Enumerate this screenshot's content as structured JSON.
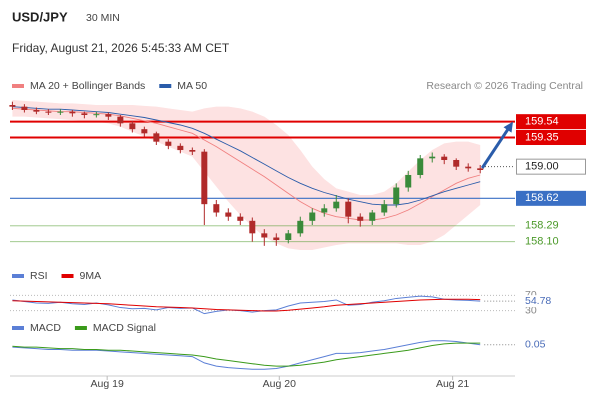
{
  "header": {
    "symbol": "USD/JPY",
    "timeframe": "30 MIN",
    "timestamp": "Friday, August 21, 2026 5:45:33 AM CET",
    "credit": "Research © 2026 Trading Central"
  },
  "chart_data": [
    {
      "type": "candlestick",
      "xlim": [
        -0.2,
        41.9
      ],
      "ylim": [
        158.0,
        159.8
      ],
      "up_color": "#3a8a3a",
      "down_color": "#b02a2a",
      "band_color": "#fde2e2",
      "open": [
        159.74,
        159.72,
        159.68,
        159.66,
        159.65,
        159.66,
        159.64,
        159.62,
        159.63,
        159.6,
        159.52,
        159.45,
        159.4,
        159.3,
        159.25,
        159.2,
        159.18,
        158.55,
        158.45,
        158.4,
        158.35,
        158.2,
        158.15,
        158.12,
        158.2,
        158.35,
        158.45,
        158.5,
        158.58,
        158.4,
        158.35,
        158.45,
        158.55,
        158.75,
        158.9,
        159.1,
        159.12,
        159.08,
        159.0,
        158.98
      ],
      "high": [
        159.78,
        159.75,
        159.71,
        159.69,
        159.69,
        159.68,
        159.66,
        159.66,
        159.65,
        159.62,
        159.55,
        159.48,
        159.42,
        159.33,
        159.28,
        159.23,
        159.21,
        158.6,
        158.5,
        158.44,
        158.39,
        158.25,
        158.2,
        158.24,
        158.4,
        158.5,
        158.55,
        158.66,
        158.62,
        158.44,
        158.48,
        158.6,
        158.8,
        158.95,
        159.14,
        159.17,
        159.15,
        159.1,
        159.04,
        159.02
      ],
      "low": [
        159.68,
        159.65,
        159.63,
        159.62,
        159.62,
        159.6,
        159.58,
        159.59,
        159.56,
        159.48,
        159.41,
        159.36,
        159.26,
        159.21,
        159.16,
        159.14,
        158.3,
        158.4,
        158.35,
        158.3,
        158.1,
        158.05,
        158.05,
        158.08,
        158.16,
        158.3,
        158.4,
        158.46,
        158.32,
        158.28,
        158.3,
        158.41,
        158.51,
        158.7,
        158.86,
        159.05,
        159.03,
        158.96,
        158.94,
        158.92
      ],
      "close": [
        159.72,
        159.68,
        159.66,
        159.65,
        159.66,
        159.64,
        159.62,
        159.63,
        159.6,
        159.52,
        159.45,
        159.4,
        159.3,
        159.25,
        159.2,
        159.18,
        158.55,
        158.45,
        158.4,
        158.35,
        158.2,
        158.15,
        158.12,
        158.2,
        158.35,
        158.45,
        158.5,
        158.58,
        158.4,
        158.35,
        158.45,
        158.55,
        158.75,
        158.9,
        159.1,
        159.12,
        159.08,
        159.0,
        158.98,
        158.96
      ],
      "series": [
        {
          "name": "MA 20 + Bollinger Bands",
          "color": "#f08080",
          "values": [
            159.7,
            159.69,
            159.68,
            159.67,
            159.66,
            159.66,
            159.65,
            159.64,
            159.63,
            159.61,
            159.58,
            159.55,
            159.52,
            159.48,
            159.44,
            159.4,
            159.32,
            159.24,
            159.15,
            159.06,
            158.97,
            158.88,
            158.78,
            158.68,
            158.58,
            158.5,
            158.44,
            158.4,
            158.38,
            158.36,
            158.36,
            158.38,
            158.42,
            158.48,
            158.56,
            158.64,
            158.72,
            158.8,
            158.86,
            158.9
          ],
          "band_upper": [
            159.8,
            159.79,
            159.78,
            159.77,
            159.76,
            159.76,
            159.75,
            159.74,
            159.74,
            159.74,
            159.74,
            159.73,
            159.72,
            159.7,
            159.68,
            159.66,
            159.7,
            159.72,
            159.72,
            159.7,
            159.66,
            159.6,
            159.5,
            159.38,
            159.2,
            159.0,
            158.85,
            158.74,
            158.7,
            158.66,
            158.66,
            158.7,
            158.8,
            158.94,
            159.08,
            159.2,
            159.28,
            159.3,
            159.3,
            159.26
          ],
          "band_lower": [
            159.6,
            159.6,
            159.59,
            159.58,
            159.57,
            159.56,
            159.55,
            159.54,
            159.52,
            159.48,
            159.42,
            159.36,
            159.3,
            159.24,
            159.18,
            159.12,
            158.94,
            158.76,
            158.58,
            158.42,
            158.28,
            158.16,
            158.08,
            158.02,
            158.0,
            158.0,
            158.03,
            158.06,
            158.08,
            158.08,
            158.08,
            158.08,
            158.08,
            158.06,
            158.06,
            158.1,
            158.18,
            158.3,
            158.42,
            158.54
          ]
        },
        {
          "name": "MA 50",
          "color": "#2a5caa",
          "values": [
            159.72,
            159.71,
            159.7,
            159.69,
            159.69,
            159.68,
            159.67,
            159.66,
            159.65,
            159.63,
            159.61,
            159.59,
            159.56,
            159.53,
            159.5,
            159.46,
            159.4,
            159.33,
            159.26,
            159.19,
            159.11,
            159.03,
            158.95,
            158.87,
            158.8,
            158.74,
            158.69,
            158.65,
            158.61,
            158.58,
            158.55,
            158.54,
            158.54,
            158.56,
            158.6,
            158.65,
            158.7,
            158.74,
            158.78,
            158.82
          ]
        }
      ],
      "levels": [
        {
          "value": 159.54,
          "label": "159.54",
          "color": "#e00000",
          "style": "filled"
        },
        {
          "value": 159.35,
          "label": "159.35",
          "color": "#e00000",
          "style": "filled"
        },
        {
          "value": 159.0,
          "label": "159.00",
          "color": "#333333",
          "style": "outline"
        },
        {
          "value": 158.62,
          "label": "158.62",
          "color": "#3a6fc4",
          "style": "filled"
        },
        {
          "value": 158.29,
          "label": "158.29",
          "color": "#4c9a2a",
          "style": "text"
        },
        {
          "value": 158.1,
          "label": "158.10",
          "color": "#4c9a2a",
          "style": "text"
        }
      ]
    },
    {
      "type": "line",
      "xlim": [
        -0.2,
        41.9
      ],
      "ylim": [
        0,
        100
      ],
      "yticks": [
        30,
        70
      ],
      "grid": true,
      "series": [
        {
          "name": "RSI",
          "color": "#5b7fd6",
          "values": [
            58,
            54,
            50,
            49,
            52,
            48,
            46,
            50,
            45,
            38,
            35,
            36,
            32,
            38,
            36,
            37,
            22,
            28,
            32,
            30,
            26,
            30,
            32,
            42,
            50,
            52,
            54,
            58,
            44,
            46,
            52,
            56,
            62,
            65,
            68,
            66,
            60,
            58,
            57,
            54.78
          ]
        },
        {
          "name": "9MA",
          "color": "#e00000",
          "values": [
            56,
            55,
            54,
            53,
            52,
            51,
            50,
            49,
            48,
            46,
            44,
            42,
            40,
            39,
            38,
            37,
            35,
            33,
            32,
            31,
            30,
            29,
            29,
            31,
            34,
            37,
            40,
            44,
            46,
            48,
            50,
            52,
            54,
            56,
            58,
            59,
            60,
            60,
            60,
            59
          ]
        }
      ]
    },
    {
      "type": "line",
      "xlim": [
        -0.2,
        41.9
      ],
      "ylim": [
        -0.32,
        0.16
      ],
      "xticks": [
        {
          "value": 7.9,
          "label": "Aug 19"
        },
        {
          "value": 22.25,
          "label": "Aug 20"
        },
        {
          "value": 36.7,
          "label": "Aug 21"
        }
      ],
      "series": [
        {
          "name": "MACD",
          "color": "#5b7fd6",
          "values": [
            0.02,
            0.01,
            0.0,
            -0.01,
            -0.01,
            -0.02,
            -0.02,
            -0.02,
            -0.03,
            -0.04,
            -0.05,
            -0.06,
            -0.07,
            -0.08,
            -0.09,
            -0.1,
            -0.18,
            -0.22,
            -0.24,
            -0.25,
            -0.26,
            -0.26,
            -0.25,
            -0.22,
            -0.18,
            -0.14,
            -0.1,
            -0.06,
            -0.06,
            -0.05,
            -0.03,
            -0.01,
            0.02,
            0.05,
            0.08,
            0.1,
            0.1,
            0.09,
            0.07,
            0.05
          ]
        },
        {
          "name": "MACD Signal",
          "color": "#3a9a1a",
          "values": [
            0.03,
            0.02,
            0.02,
            0.01,
            0.0,
            0.0,
            -0.01,
            -0.01,
            -0.02,
            -0.02,
            -0.03,
            -0.04,
            -0.05,
            -0.06,
            -0.07,
            -0.08,
            -0.1,
            -0.13,
            -0.15,
            -0.17,
            -0.19,
            -0.21,
            -0.22,
            -0.22,
            -0.21,
            -0.19,
            -0.17,
            -0.14,
            -0.12,
            -0.1,
            -0.08,
            -0.06,
            -0.04,
            -0.02,
            0.01,
            0.04,
            0.06,
            0.07,
            0.07,
            0.07
          ]
        }
      ]
    }
  ]
}
